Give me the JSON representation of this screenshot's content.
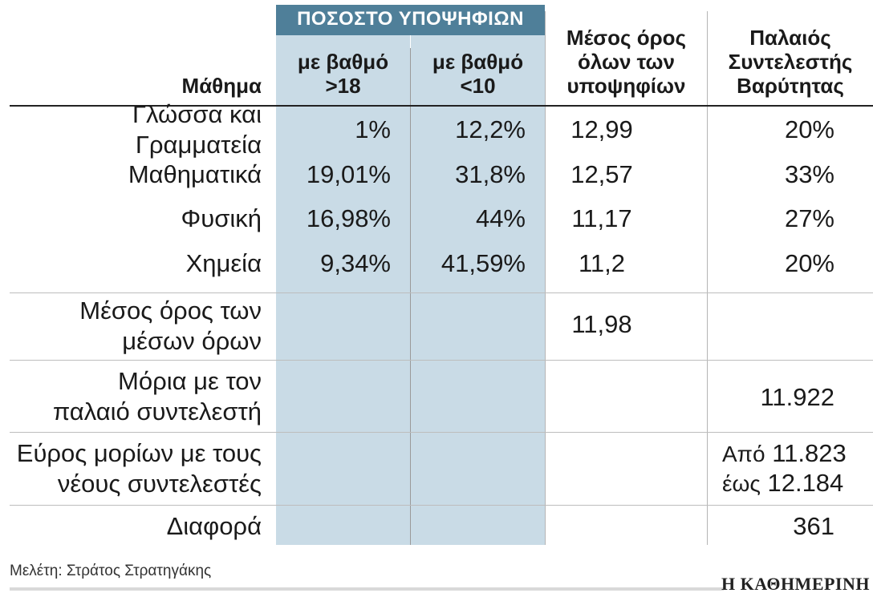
{
  "chart_data": {
    "type": "table",
    "group_header": "ΠΟΣΟΣΤΟ ΥΠΟΨΗΦΙΩΝ",
    "columns": {
      "subject": "Μάθημα",
      "above18": [
        "με βαθμό",
        ">18"
      ],
      "below10": [
        "με βαθμό",
        "<10"
      ],
      "average": [
        "Μέσος όρος",
        "όλων των",
        "υποψηφίων"
      ],
      "old_coef": [
        "Παλαιός",
        "Συντελεστής",
        "Βαρύτητας"
      ]
    },
    "rows": [
      {
        "subject": "Γλώσσα και Γραμματεία",
        "above18": "1%",
        "below10": "12,2%",
        "average": "12,99",
        "old_coef": "20%"
      },
      {
        "subject": "Μαθηματικά",
        "above18": "19,01%",
        "below10": "31,8%",
        "average": "12,57",
        "old_coef": "33%"
      },
      {
        "subject": "Φυσική",
        "above18": "16,98%",
        "below10": "44%",
        "average": "11,17",
        "old_coef": "27%"
      },
      {
        "subject": "Χημεία",
        "above18": "9,34%",
        "below10": "41,59%",
        "average": "11,2",
        "old_coef": "20%"
      }
    ],
    "summary": {
      "mean_of_means": {
        "label": [
          "Μέσος όρος των",
          "μέσων όρων"
        ],
        "value": "11,98"
      },
      "old_points": {
        "label": [
          "Μόρια με τον",
          "παλαιό συντελεστή"
        ],
        "value": "11.922"
      },
      "range": {
        "label": [
          "Εύρος μορίων με τους",
          "νέους συντελεστές"
        ],
        "from_word": "Από",
        "from_value": "11.823",
        "to_word": "έως",
        "to_value": "12.184"
      },
      "difference": {
        "label": "Διαφορά",
        "value": "361"
      }
    }
  },
  "footer": {
    "credit": "Μελέτη: Στράτος Στρατηγάκης",
    "logo": "Η ΚΑΘΗΜΕΡΙΝΗ"
  }
}
